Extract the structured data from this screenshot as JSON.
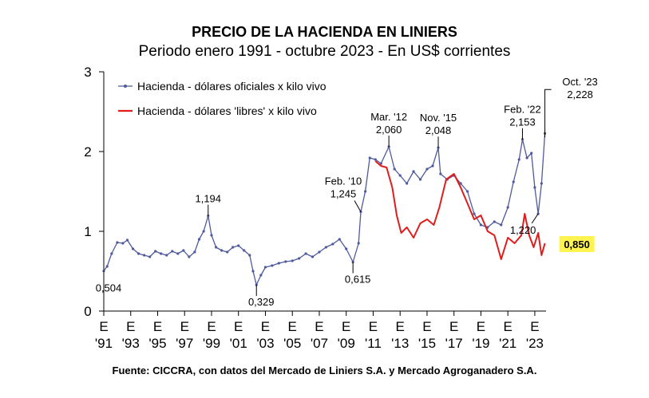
{
  "chart_data": {
    "type": "line",
    "title": "PRECIO DE LA HACIENDA EN LINIERS",
    "subtitle": "Periodo enero 1991 - octubre 2023 - En US$ corrientes",
    "source": "Fuente: CICCRA, con datos del Mercado de Liniers S.A. y Mercado Agroganadero S.A.",
    "ylim": [
      0,
      3
    ],
    "y_ticks": [
      "0",
      "1",
      "2",
      "3"
    ],
    "x_ticks": [
      {
        "year": 1991,
        "line1": "E",
        "line2": "'91"
      },
      {
        "year": 1993,
        "line1": "E",
        "line2": "'93"
      },
      {
        "year": 1995,
        "line1": "E",
        "line2": "'95"
      },
      {
        "year": 1997,
        "line1": "E",
        "line2": "'97"
      },
      {
        "year": 1999,
        "line1": "E",
        "line2": "'99"
      },
      {
        "year": 2001,
        "line1": "E",
        "line2": "'01"
      },
      {
        "year": 2003,
        "line1": "E",
        "line2": "'03"
      },
      {
        "year": 2005,
        "line1": "E",
        "line2": "'05"
      },
      {
        "year": 2007,
        "line1": "E",
        "line2": "'07"
      },
      {
        "year": 2009,
        "line1": "E",
        "line2": "'09"
      },
      {
        "year": 2011,
        "line1": "E",
        "line2": "'11"
      },
      {
        "year": 2013,
        "line1": "E",
        "line2": "'13"
      },
      {
        "year": 2015,
        "line1": "E",
        "line2": "'15"
      },
      {
        "year": 2017,
        "line1": "E",
        "line2": "'17"
      },
      {
        "year": 2019,
        "line1": "E",
        "line2": "'19"
      },
      {
        "year": 2021,
        "line1": "E",
        "line2": "'21"
      },
      {
        "year": 2023,
        "line1": "E",
        "line2": "'23"
      }
    ],
    "legend_position": "top-left",
    "series": [
      {
        "name": "Hacienda - dólares oficiales x kilo vivo",
        "color": "#4f5a9c",
        "marker": "small-dot",
        "points": [
          [
            "1991-01",
            0.504
          ],
          [
            "1991-04",
            0.56
          ],
          [
            "1991-08",
            0.72
          ],
          [
            "1992-01",
            0.86
          ],
          [
            "1992-06",
            0.85
          ],
          [
            "1992-10",
            0.89
          ],
          [
            "1993-03",
            0.78
          ],
          [
            "1993-08",
            0.72
          ],
          [
            "1994-01",
            0.7
          ],
          [
            "1994-06",
            0.68
          ],
          [
            "1994-11",
            0.75
          ],
          [
            "1995-04",
            0.72
          ],
          [
            "1995-09",
            0.7
          ],
          [
            "1996-02",
            0.75
          ],
          [
            "1996-07",
            0.72
          ],
          [
            "1996-12",
            0.76
          ],
          [
            "1997-05",
            0.68
          ],
          [
            "1997-10",
            0.74
          ],
          [
            "1998-02",
            0.9
          ],
          [
            "1998-06",
            1.0
          ],
          [
            "1998-10",
            1.194
          ],
          [
            "1999-01",
            0.95
          ],
          [
            "1999-05",
            0.8
          ],
          [
            "1999-10",
            0.76
          ],
          [
            "2000-03",
            0.74
          ],
          [
            "2000-08",
            0.8
          ],
          [
            "2001-01",
            0.82
          ],
          [
            "2001-06",
            0.76
          ],
          [
            "2001-11",
            0.7
          ],
          [
            "2002-02",
            0.5
          ],
          [
            "2002-05",
            0.329
          ],
          [
            "2002-09",
            0.45
          ],
          [
            "2003-01",
            0.55
          ],
          [
            "2003-07",
            0.57
          ],
          [
            "2004-01",
            0.6
          ],
          [
            "2004-07",
            0.62
          ],
          [
            "2005-01",
            0.63
          ],
          [
            "2005-07",
            0.66
          ],
          [
            "2006-01",
            0.72
          ],
          [
            "2006-07",
            0.68
          ],
          [
            "2007-01",
            0.74
          ],
          [
            "2007-07",
            0.8
          ],
          [
            "2008-01",
            0.84
          ],
          [
            "2008-07",
            0.9
          ],
          [
            "2009-01",
            0.78
          ],
          [
            "2009-07",
            0.615
          ],
          [
            "2009-12",
            0.85
          ],
          [
            "2010-02",
            1.245
          ],
          [
            "2010-06",
            1.5
          ],
          [
            "2010-10",
            1.92
          ],
          [
            "2011-03",
            1.9
          ],
          [
            "2011-08",
            1.85
          ],
          [
            "2012-03",
            2.06
          ],
          [
            "2012-08",
            1.78
          ],
          [
            "2013-01",
            1.7
          ],
          [
            "2013-07",
            1.6
          ],
          [
            "2014-01",
            1.75
          ],
          [
            "2014-07",
            1.65
          ],
          [
            "2015-01",
            1.78
          ],
          [
            "2015-06",
            1.82
          ],
          [
            "2015-11",
            2.048
          ],
          [
            "2016-01",
            1.72
          ],
          [
            "2016-07",
            1.65
          ],
          [
            "2017-01",
            1.7
          ],
          [
            "2017-07",
            1.6
          ],
          [
            "2018-01",
            1.5
          ],
          [
            "2018-07",
            1.22
          ],
          [
            "2019-01",
            1.08
          ],
          [
            "2019-07",
            1.05
          ],
          [
            "2020-01",
            1.12
          ],
          [
            "2020-07",
            1.08
          ],
          [
            "2021-01",
            1.3
          ],
          [
            "2021-06",
            1.62
          ],
          [
            "2021-11",
            1.9
          ],
          [
            "2022-02",
            2.153
          ],
          [
            "2022-06",
            1.92
          ],
          [
            "2022-10",
            1.98
          ],
          [
            "2023-01",
            1.55
          ],
          [
            "2023-04",
            1.22
          ],
          [
            "2023-07",
            1.6
          ],
          [
            "2023-10",
            2.228
          ]
        ]
      },
      {
        "name": "Hacienda - dólares 'libres' x kilo vivo",
        "color": "#e01c1c",
        "marker": "none",
        "points": [
          [
            "2011-03",
            1.88
          ],
          [
            "2011-08",
            1.82
          ],
          [
            "2012-01",
            1.8
          ],
          [
            "2012-06",
            1.55
          ],
          [
            "2012-10",
            1.2
          ],
          [
            "2013-02",
            0.98
          ],
          [
            "2013-07",
            1.05
          ],
          [
            "2014-01",
            0.92
          ],
          [
            "2014-07",
            1.1
          ],
          [
            "2015-01",
            1.15
          ],
          [
            "2015-07",
            1.08
          ],
          [
            "2015-12",
            1.3
          ],
          [
            "2016-06",
            1.65
          ],
          [
            "2017-01",
            1.72
          ],
          [
            "2017-07",
            1.55
          ],
          [
            "2018-01",
            1.35
          ],
          [
            "2018-07",
            1.15
          ],
          [
            "2019-01",
            1.2
          ],
          [
            "2019-07",
            1.0
          ],
          [
            "2020-01",
            0.95
          ],
          [
            "2020-07",
            0.65
          ],
          [
            "2021-01",
            0.92
          ],
          [
            "2021-07",
            0.85
          ],
          [
            "2022-01",
            0.95
          ],
          [
            "2022-04",
            1.22
          ],
          [
            "2022-08",
            0.95
          ],
          [
            "2022-12",
            0.8
          ],
          [
            "2023-04",
            0.98
          ],
          [
            "2023-07",
            0.7
          ],
          [
            "2023-10",
            0.85
          ]
        ]
      }
    ],
    "annotations": [
      {
        "date": "1991-01",
        "line1": "0,504",
        "line2": "",
        "position": "below",
        "boxed": false
      },
      {
        "date": "1998-10",
        "line1": "1,194",
        "line2": "",
        "position": "above",
        "boxed": false
      },
      {
        "date": "2002-05",
        "line1": "0,329",
        "line2": "",
        "position": "below",
        "boxed": false
      },
      {
        "date": "2009-07",
        "line1": "0,615",
        "line2": "",
        "position": "below",
        "boxed": false
      },
      {
        "date": "2010-02",
        "line1": "Feb. '10",
        "line2": "1,245",
        "position": "above-left",
        "boxed": false
      },
      {
        "date": "2012-03",
        "line1": "Mar. '12",
        "line2": "2,060",
        "position": "above",
        "boxed": false
      },
      {
        "date": "2015-11",
        "line1": "Nov. '15",
        "line2": "2,048",
        "position": "above",
        "boxed": false
      },
      {
        "date": "2022-02",
        "line1": "Feb. '22",
        "line2": "2,153",
        "position": "above",
        "boxed": false
      },
      {
        "date": "2023-04",
        "line1": "1,220",
        "line2": "",
        "position": "below-left",
        "boxed": false
      },
      {
        "date": "2023-10",
        "line1": "Oct. '23",
        "line2": "2,228",
        "position": "right",
        "boxed": false
      },
      {
        "date": "2023-10",
        "line1": "0,850",
        "line2": "",
        "position": "right-red",
        "boxed": true
      }
    ],
    "highlight_color": "#fff44f"
  }
}
